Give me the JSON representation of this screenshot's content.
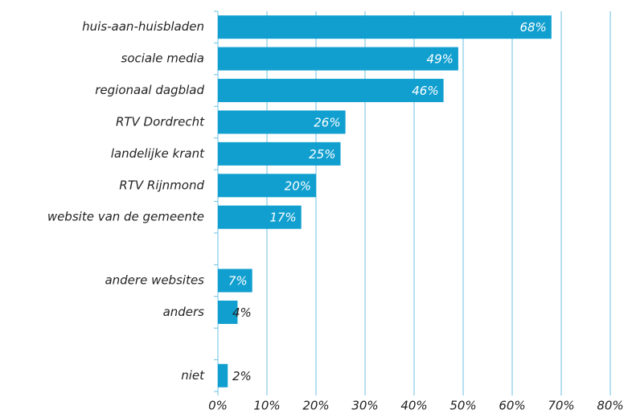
{
  "chart_data": {
    "type": "bar",
    "orientation": "horizontal",
    "categories": [
      "huis-aan-huisbladen",
      "sociale media",
      "regionaal dagblad",
      "RTV Dordrecht",
      "landelijke krant",
      "RTV Rijnmond",
      "website van de gemeente",
      null,
      "andere websites",
      "anders",
      null,
      "niet"
    ],
    "values": [
      68,
      49,
      46,
      26,
      25,
      20,
      17,
      null,
      7,
      4,
      null,
      2
    ],
    "value_labels": [
      "68%",
      "49%",
      "46%",
      "26%",
      "25%",
      "20%",
      "17%",
      null,
      "7%",
      "4%",
      null,
      "2%"
    ],
    "color": "#109fcf",
    "xlim": [
      0,
      80
    ],
    "xticks": [
      {
        "value": 0,
        "label": "0%"
      },
      {
        "value": 10,
        "label": "10%"
      },
      {
        "value": 20,
        "label": "20%"
      },
      {
        "value": 30,
        "label": "30%"
      },
      {
        "value": 40,
        "label": "40%"
      },
      {
        "value": 50,
        "label": "50%"
      },
      {
        "value": 60,
        "label": "60%"
      },
      {
        "value": 70,
        "label": "70%"
      },
      {
        "value": 80,
        "label": "80%"
      }
    ],
    "grid": true
  }
}
